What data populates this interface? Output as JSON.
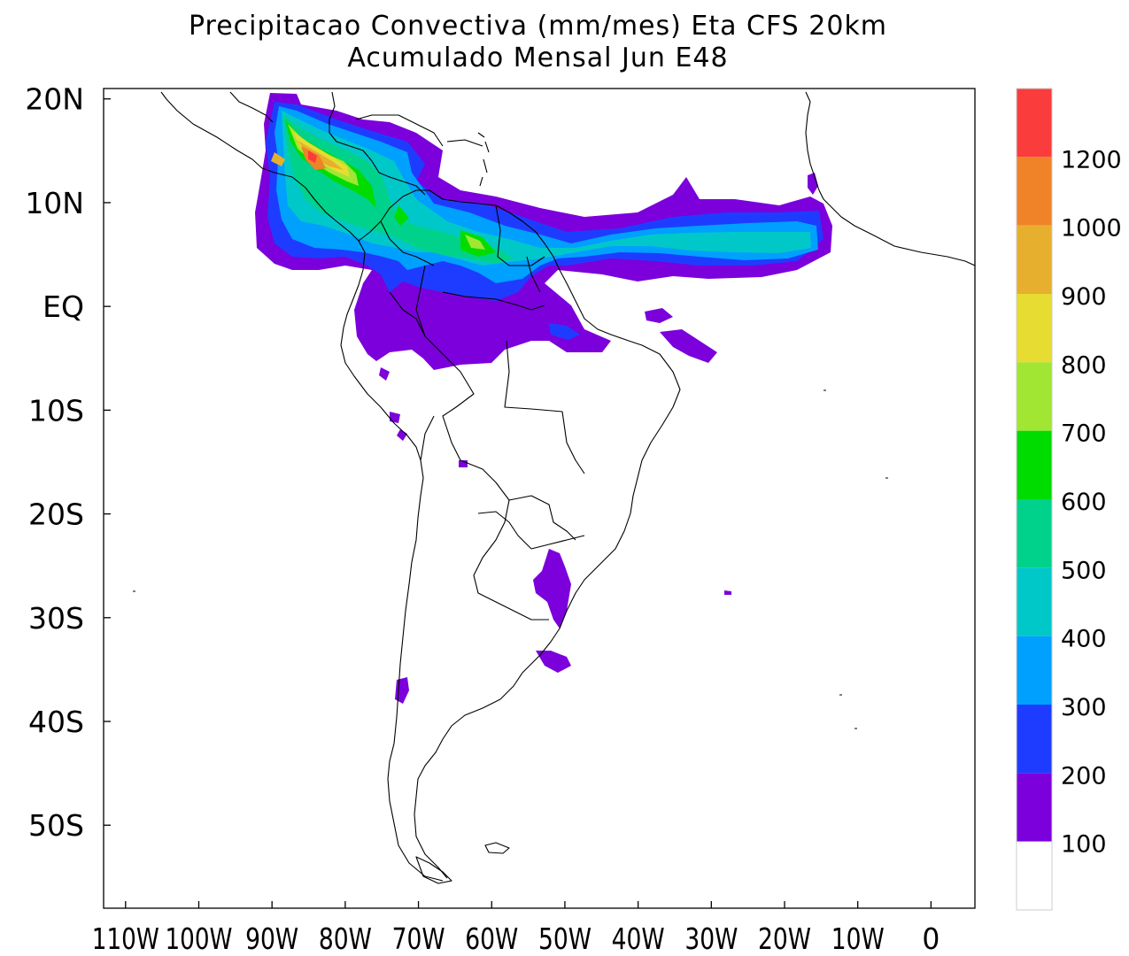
{
  "title": {
    "line1": "Precipitacao Convectiva (mm/mes) Eta CFS 20km",
    "line2": "Acumulado Mensal Jun  E48"
  },
  "map": {
    "variable": "Precipitacao Convectiva",
    "units": "mm/mes",
    "model": "Eta CFS 20km",
    "period": "Acumulado Mensal Jun",
    "member": "E48",
    "lon_range": [
      -113,
      6
    ],
    "lat_range": [
      -58,
      21
    ],
    "lat_labels": [
      {
        "lat": 20,
        "text": "20N"
      },
      {
        "lat": 10,
        "text": "10N"
      },
      {
        "lat": 0,
        "text": "EQ"
      },
      {
        "lat": -10,
        "text": "10S"
      },
      {
        "lat": -20,
        "text": "20S"
      },
      {
        "lat": -30,
        "text": "30S"
      },
      {
        "lat": -40,
        "text": "40S"
      },
      {
        "lat": -50,
        "text": "50S"
      }
    ],
    "lon_labels": [
      {
        "lon": -110,
        "text": "110W"
      },
      {
        "lon": -100,
        "text": "100W"
      },
      {
        "lon": -90,
        "text": "90W"
      },
      {
        "lon": -80,
        "text": "80W"
      },
      {
        "lon": -70,
        "text": "70W"
      },
      {
        "lon": -60,
        "text": "60W"
      },
      {
        "lon": -50,
        "text": "50W"
      },
      {
        "lon": -40,
        "text": "40W"
      },
      {
        "lon": -30,
        "text": "30W"
      },
      {
        "lon": -20,
        "text": "20W"
      },
      {
        "lon": -10,
        "text": "10W"
      },
      {
        "lon": 0,
        "text": "0"
      }
    ],
    "shading_levels": [
      100,
      200,
      300,
      400,
      500,
      600,
      700,
      800,
      900,
      1000,
      1200
    ],
    "shading_colors": [
      "#ffffff",
      "#7b00dc",
      "#1e3cff",
      "#00a0ff",
      "#00c8c8",
      "#00d28c",
      "#00dc00",
      "#a0e632",
      "#e6dc32",
      "#e6af2d",
      "#f08228",
      "#fa3c3c"
    ],
    "colorbar_labels": [
      "100",
      "200",
      "300",
      "400",
      "500",
      "600",
      "700",
      "800",
      "900",
      "1000",
      "1200"
    ]
  }
}
